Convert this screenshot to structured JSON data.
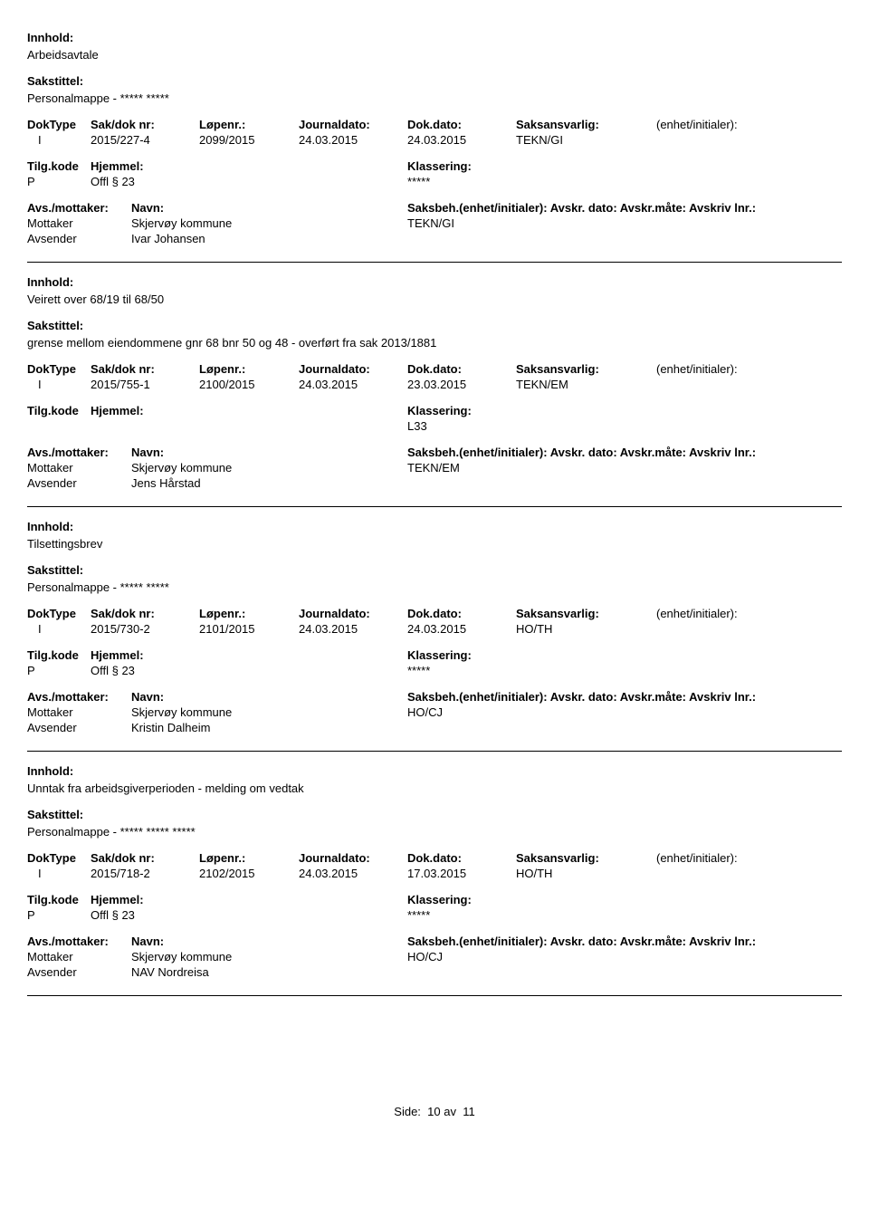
{
  "labels": {
    "innhold": "Innhold:",
    "sakstittel": "Sakstittel:",
    "doktype": "DokType",
    "sakdok": "Sak/dok nr:",
    "lopenr": "Løpenr.:",
    "journaldato": "Journaldato:",
    "dokdato": "Dok.dato:",
    "saksansvarlig": "Saksansvarlig:",
    "enhet": "(enhet/initialer):",
    "tilgkode": "Tilg.kode",
    "hjemmel": "Hjemmel:",
    "klassering": "Klassering:",
    "avsmottaker": "Avs./mottaker:",
    "navn": "Navn:",
    "saksbeh_full": "Saksbeh.(enhet/initialer): Avskr. dato:  Avskr.måte:  Avskriv lnr.:",
    "mottaker": "Mottaker",
    "avsender": "Avsender",
    "side": "Side:",
    "av": "av"
  },
  "page": {
    "current": "10",
    "total": "11"
  },
  "entries": [
    {
      "innhold": "Arbeidsavtale",
      "sakstittel": "Personalmappe -  ***** *****",
      "doktype": "I",
      "sakdok": "2015/227-4",
      "lopenr": "2099/2015",
      "journaldato": "24.03.2015",
      "dokdato": "24.03.2015",
      "saksansvarlig": "TEKN/GI",
      "tilgkode": "P",
      "hjemmel": "Offl § 23",
      "klassering": "*****",
      "saksbeh": "TEKN/GI",
      "mottaker_navn": "Skjervøy kommune",
      "avsender_navn": "Ivar Johansen"
    },
    {
      "innhold": "Veirett over 68/19 til 68/50",
      "sakstittel": "grense mellom eiendommene gnr 68 bnr 50 og 48 - overført fra sak 2013/1881",
      "doktype": "I",
      "sakdok": "2015/755-1",
      "lopenr": "2100/2015",
      "journaldato": "24.03.2015",
      "dokdato": "23.03.2015",
      "saksansvarlig": "TEKN/EM",
      "tilgkode": "",
      "hjemmel": "",
      "klassering": "L33",
      "saksbeh": "TEKN/EM",
      "mottaker_navn": "Skjervøy kommune",
      "avsender_navn": "Jens Hårstad"
    },
    {
      "innhold": "Tilsettingsbrev",
      "sakstittel": "Personalmappe - ***** *****",
      "doktype": "I",
      "sakdok": "2015/730-2",
      "lopenr": "2101/2015",
      "journaldato": "24.03.2015",
      "dokdato": "24.03.2015",
      "saksansvarlig": "HO/TH",
      "tilgkode": "P",
      "hjemmel": "Offl § 23",
      "klassering": "*****",
      "saksbeh": "HO/CJ",
      "mottaker_navn": "Skjervøy kommune",
      "avsender_navn": "Kristin Dalheim"
    },
    {
      "innhold": "Unntak fra arbeidsgiverperioden - melding om vedtak",
      "sakstittel": "Personalmappe - ***** ***** *****",
      "doktype": "I",
      "sakdok": "2015/718-2",
      "lopenr": "2102/2015",
      "journaldato": "24.03.2015",
      "dokdato": "17.03.2015",
      "saksansvarlig": "HO/TH",
      "tilgkode": "P",
      "hjemmel": "Offl § 23",
      "klassering": "*****",
      "saksbeh": "HO/CJ",
      "mottaker_navn": "Skjervøy kommune",
      "avsender_navn": "NAV Nordreisa"
    }
  ]
}
